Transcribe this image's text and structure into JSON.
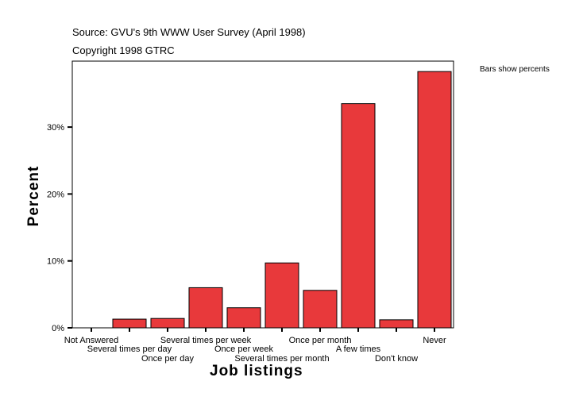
{
  "chart_data": {
    "type": "bar",
    "source": "Source: GVU's 9th WWW User Survey (April 1998)",
    "copyright": "Copyright 1998 GTRC",
    "note": "Bars show percents",
    "xlabel": "Job listings",
    "ylabel": "Percent",
    "ylim": [
      0,
      39
    ],
    "yticks": [
      0,
      10,
      20,
      30
    ],
    "ytick_labels": [
      "0%",
      "10%",
      "20%",
      "30%"
    ],
    "grid": false,
    "bar_color": "#e8393b",
    "categories": [
      "Not Answered",
      "Several times per day",
      "Once per day",
      "Several times per week",
      "Once per week",
      "Several times per month",
      "Once per month",
      "A few times",
      "Don't know",
      "Never"
    ],
    "values": [
      0,
      1.3,
      1.4,
      6.0,
      3.0,
      9.7,
      5.6,
      33.5,
      1.2,
      38.3
    ]
  }
}
